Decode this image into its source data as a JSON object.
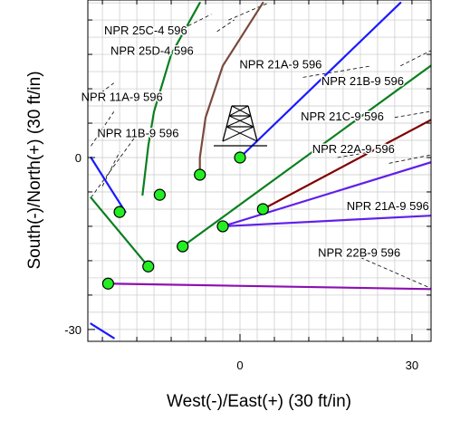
{
  "chart_data": {
    "type": "well-plan-view",
    "xlabel": "West(-)/East(+) (30 ft/in)",
    "ylabel": "South(-)/North(+) (30 ft/in)",
    "xlim": [
      -26,
      36
    ],
    "ylim": [
      -32,
      27
    ],
    "x_ticks": [
      0,
      30
    ],
    "y_ticks": [
      0,
      -30
    ],
    "grid": true,
    "colors": {
      "grid": "#c8c8c8",
      "frame": "#000000",
      "marker": "#22ee22",
      "blue": "#1a1aff",
      "green": "#0a7f1e",
      "brown": "#7a4a3c",
      "darkred": "#800000",
      "violet": "#6020e8",
      "purple": "#8b10b0",
      "dashed": "#000000"
    },
    "surface_location": {
      "x": 0,
      "y": 0
    },
    "wells": [
      {
        "label": "NPR 25C-4 596",
        "color": "green",
        "points": [
          [
            -17,
            -6.5
          ],
          [
            -16,
            2
          ],
          [
            -15,
            8
          ],
          [
            -12,
            18
          ],
          [
            -7,
            27
          ]
        ]
      },
      {
        "label": "NPR 25D-4 596",
        "color": "brown",
        "points": [
          [
            -7,
            -3
          ],
          [
            -7,
            0
          ],
          [
            -6,
            7
          ],
          [
            -3,
            16
          ],
          [
            4,
            27
          ]
        ]
      },
      {
        "label": "NPR 21A-9 596",
        "color": "blue",
        "points": [
          [
            0,
            0
          ],
          [
            28,
            27
          ]
        ]
      },
      {
        "label": "NPR 21B-9 596",
        "color": "green",
        "points": [
          [
            -10,
            -15.5
          ],
          [
            36,
            18
          ]
        ]
      },
      {
        "label": "NPR 21C-9 596",
        "color": "darkred",
        "points": [
          [
            4,
            -9
          ],
          [
            36,
            8
          ]
        ]
      },
      {
        "label": "NPR 22A-9 596",
        "color": "violet",
        "points": [
          [
            -3,
            -12
          ],
          [
            36,
            0
          ]
        ]
      },
      {
        "label": "NPR 21A-9 596",
        "color": "violet",
        "points": [
          [
            -3,
            -12
          ],
          [
            36,
            -10
          ]
        ]
      },
      {
        "label": "NPR 22B-9 596",
        "color": "purple",
        "points": [
          [
            -23,
            -22
          ],
          [
            36,
            -23
          ]
        ]
      },
      {
        "label": "NPR 11A-9 596",
        "color": "blue",
        "points": [
          [
            -26,
            0
          ],
          [
            -20,
            -9.5
          ]
        ]
      },
      {
        "label": "NPR 11B-9 596",
        "color": "green",
        "points": [
          [
            -26,
            -7
          ],
          [
            -16,
            -19
          ]
        ]
      },
      {
        "label": "",
        "color": "blue",
        "points": [
          [
            -26,
            -29
          ],
          [
            -22,
            -31.5
          ]
        ]
      }
    ],
    "dashed_lines": [
      [
        [
          -11,
          22
        ],
        [
          -5,
          25
        ]
      ],
      [
        [
          -4,
          22
        ],
        [
          -1,
          24
        ]
      ],
      [
        [
          -2,
          24
        ],
        [
          5,
          27
        ]
      ],
      [
        [
          11,
          14
        ],
        [
          23,
          16
        ]
      ],
      [
        [
          28,
          16
        ],
        [
          36,
          20
        ]
      ],
      [
        [
          27,
          7
        ],
        [
          33,
          8
        ]
      ],
      [
        [
          17,
          0
        ],
        [
          23,
          1
        ]
      ],
      [
        [
          26,
          -1
        ],
        [
          36,
          1
        ]
      ],
      [
        [
          -26,
          10
        ],
        [
          -22,
          13
        ]
      ],
      [
        [
          -26,
          2
        ],
        [
          -22,
          8
        ]
      ],
      [
        [
          -26,
          -7
        ],
        [
          -18,
          4
        ]
      ],
      [
        [
          -24,
          -5
        ],
        [
          -21,
          1
        ]
      ],
      [
        [
          20,
          -17
        ],
        [
          36,
          -24
        ]
      ]
    ],
    "labels": [
      {
        "text": "NPR 25C-4 596",
        "x": -23.7,
        "y": 22.1
      },
      {
        "text": "NPR 25D-4 596",
        "x": -22.6,
        "y": 18.6
      },
      {
        "text": "NPR 21A-9 596",
        "x": -0.1,
        "y": 16.2
      },
      {
        "text": "NPR 21B-9 596",
        "x": 14.2,
        "y": 13.3
      },
      {
        "text": "NPR 11A-9 596",
        "x": -27.7,
        "y": 10.5
      },
      {
        "text": "NPR 21C-9 596",
        "x": 10.6,
        "y": 7.1
      },
      {
        "text": "NPR 11B-9 596",
        "x": -24.9,
        "y": 4.2
      },
      {
        "text": "NPR 22A-9 596",
        "x": 12.6,
        "y": 1.4
      },
      {
        "text": "NPR 21A-9 596",
        "x": 18.6,
        "y": -8.5
      },
      {
        "text": "NPR 22B-9 596",
        "x": 13.6,
        "y": -16.7
      }
    ],
    "targets": [
      {
        "x": 0,
        "y": 0
      },
      {
        "x": -7,
        "y": -3
      },
      {
        "x": -14,
        "y": -6.5
      },
      {
        "x": -21,
        "y": -9.5
      },
      {
        "x": 4,
        "y": -9
      },
      {
        "x": -3,
        "y": -12
      },
      {
        "x": -10,
        "y": -15.5
      },
      {
        "x": -16,
        "y": -19
      },
      {
        "x": -23,
        "y": -22
      }
    ]
  }
}
